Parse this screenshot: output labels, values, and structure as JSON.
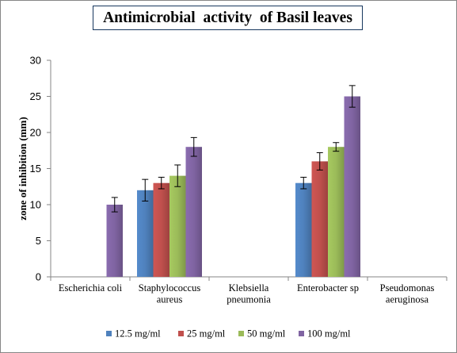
{
  "chart_data": {
    "type": "bar",
    "title": "Antimicrobial  activity  of Basil leaves",
    "ylabel": "zone of inhibition  (mm)",
    "xlabel": "",
    "ylim": [
      0,
      30
    ],
    "yticks": [
      0,
      5,
      10,
      15,
      20,
      25,
      30
    ],
    "grid": false,
    "legend_position": "bottom",
    "categories": [
      [
        "Escherichia coli"
      ],
      [
        "Staphylococcus",
        "aureus"
      ],
      [
        "Klebsiella",
        "pneumonia"
      ],
      [
        "Enterobacter sp"
      ],
      [
        "Pseudomonas",
        "aeruginosa"
      ]
    ],
    "series": [
      {
        "name": "12.5 mg/ml",
        "color": "#4f81bd",
        "values": [
          0,
          12,
          0,
          13,
          0
        ],
        "errors": [
          0,
          1.5,
          0,
          0.8,
          0
        ]
      },
      {
        "name": "25 mg/ml",
        "color": "#c0504d",
        "values": [
          0,
          13,
          0,
          16,
          0
        ],
        "errors": [
          0,
          0.8,
          0,
          1.2,
          0
        ]
      },
      {
        "name": "50 mg/ml",
        "color": "#9bbb59",
        "values": [
          0,
          14,
          0,
          18,
          0
        ],
        "errors": [
          0,
          1.5,
          0,
          0.6,
          0
        ]
      },
      {
        "name": "100 mg/ml",
        "color": "#8064a2",
        "values": [
          10,
          18,
          0,
          25,
          0
        ],
        "errors": [
          1,
          1.3,
          0,
          1.5,
          0
        ]
      }
    ]
  }
}
